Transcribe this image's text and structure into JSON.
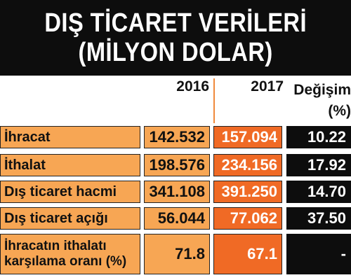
{
  "title": {
    "line1": "DIŞ TİCARET VERİLERİ",
    "line2": "(MİLYON DOLAR)"
  },
  "chart_data": {
    "type": "table",
    "columns": [
      "2016",
      "2017",
      "Değişim",
      "(%)"
    ],
    "rows": [
      {
        "label": "İhracat",
        "v2016": "142.532",
        "v2017": "157.094",
        "change": "10.22"
      },
      {
        "label": "İthalat",
        "v2016": "198.576",
        "v2017": "234.156",
        "change": "17.92"
      },
      {
        "label": "Dış ticaret hacmi",
        "v2016": "341.108",
        "v2017": "391.250",
        "change": "14.70"
      },
      {
        "label": "Dış ticaret açığı",
        "v2016": "56.044",
        "v2017": "77.062",
        "change": "37.50"
      },
      {
        "label_line1": "İhracatın ithalatı",
        "label_line2": "karşılama oranı (%)",
        "v2016": "71.8",
        "v2017": "67.1",
        "change": "-"
      }
    ]
  },
  "colors": {
    "light_orange": "#f7a654",
    "dark_orange": "#f06a25",
    "black": "#0d0d0d"
  }
}
